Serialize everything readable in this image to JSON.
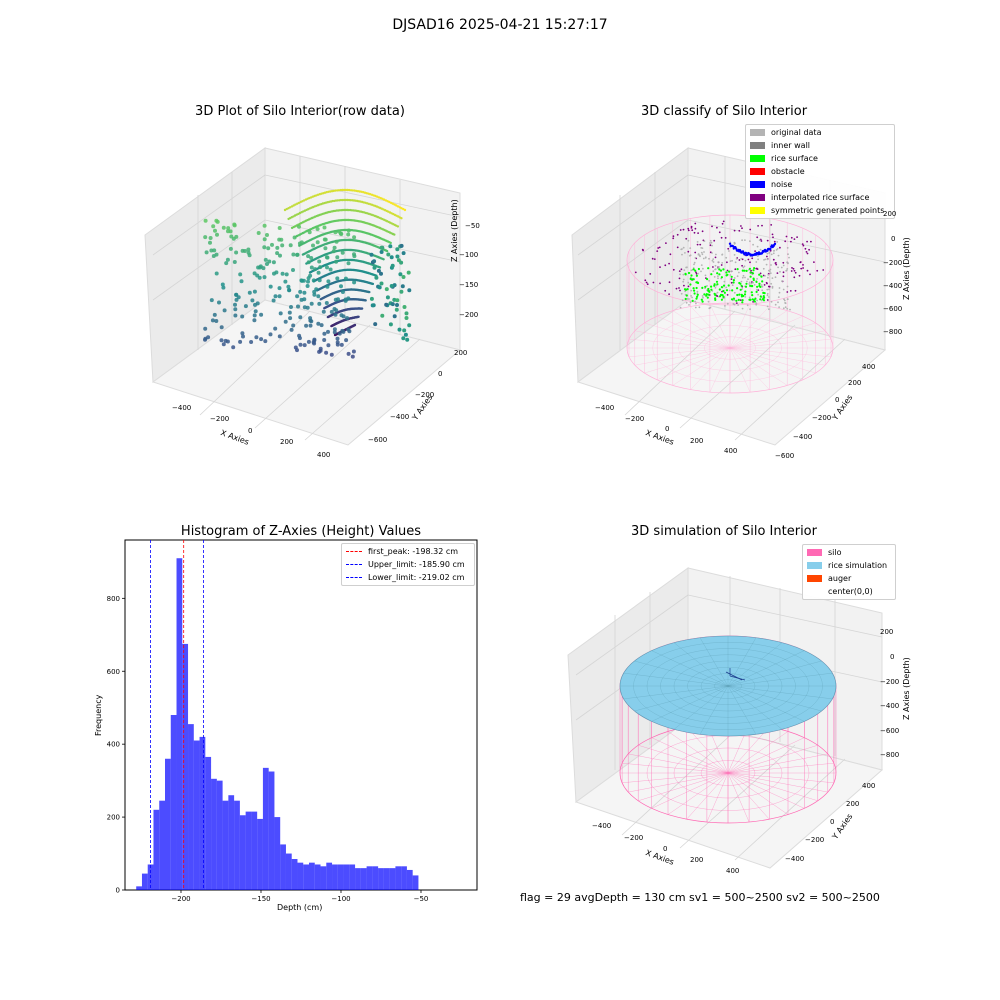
{
  "figure": {
    "suptitle": "DJSAD16 2025-04-21 15:27:17",
    "footer": "flag = 29  avgDepth = 130 cm  sv1 = 500~2500  sv2 = 500~2500"
  },
  "colors": {
    "silo": "#ff69b4",
    "rice_sim": "#87ceeb",
    "auger": "#ff4500",
    "hist": "#0000ff",
    "peak": "#ff0000",
    "limit": "#0000ff"
  },
  "chart_data": [
    {
      "type": "scatter",
      "title": "3D Plot of Silo Interior(row data)",
      "xlabel": "X Axies",
      "ylabel": "Y Axies",
      "zlabel": "Z Axies (Depth)",
      "xticks": [
        "−400",
        "−200",
        "0",
        "200",
        "400"
      ],
      "yticks": [
        "200",
        "0",
        "−200",
        "−400",
        "−600"
      ],
      "zticks": [
        "−50",
        "−100",
        "−150",
        "−200"
      ],
      "colormap": "viridis"
    },
    {
      "type": "scatter",
      "title": "3D classify of Silo Interior",
      "xlabel": "X Axies",
      "ylabel": "Y Axies",
      "zlabel": "Z Axies (Depth)",
      "xticks": [
        "−400",
        "−200",
        "0",
        "200",
        "400"
      ],
      "yticks": [
        "400",
        "200",
        "0",
        "−200",
        "−400",
        "−600"
      ],
      "zticks": [
        "200",
        "0",
        "−200",
        "−400",
        "−600",
        "−800"
      ],
      "legend": [
        {
          "label": "original data",
          "color": "#b4b4b4"
        },
        {
          "label": "inner wall",
          "color": "#808080"
        },
        {
          "label": "rice surface",
          "color": "#00ff00"
        },
        {
          "label": "obstacle",
          "color": "#ff0000"
        },
        {
          "label": "noise",
          "color": "#0000ff"
        },
        {
          "label": "interpolated rice surface",
          "color": "#800080"
        },
        {
          "label": "symmetric generated points",
          "color": "#ffff00"
        }
      ]
    },
    {
      "type": "bar",
      "title": "Histogram of Z-Axies (Height) Values",
      "xlabel": "Depth (cm)",
      "ylabel": "Frequency",
      "xlim": [
        -235,
        -15
      ],
      "ylim": [
        0,
        960
      ],
      "xticks": [
        {
          "value": -200,
          "label": "−200"
        },
        {
          "value": -150,
          "label": "−150"
        },
        {
          "value": -100,
          "label": "−100"
        },
        {
          "value": -50,
          "label": "−50"
        }
      ],
      "yticks": [
        0,
        200,
        400,
        600,
        800
      ],
      "bin_start": -228,
      "bin_width": 3.6,
      "values": [
        10,
        45,
        70,
        220,
        245,
        360,
        480,
        910,
        675,
        455,
        410,
        420,
        365,
        305,
        300,
        245,
        260,
        245,
        205,
        215,
        215,
        195,
        335,
        325,
        200,
        125,
        100,
        85,
        75,
        70,
        75,
        70,
        65,
        75,
        70,
        70,
        70,
        70,
        60,
        60,
        65,
        65,
        60,
        60,
        60,
        65,
        65,
        55,
        40
      ],
      "vlines": [
        {
          "label": "first_peak: -198.32 cm",
          "value": -198.32,
          "color": "#ff0000"
        },
        {
          "label": "Upper_limit: -185.90 cm",
          "value": -185.9,
          "color": "#0000ff"
        },
        {
          "label": "Lower_limit: -219.02 cm",
          "value": -219.02,
          "color": "#0000ff"
        }
      ]
    },
    {
      "type": "scatter",
      "title": "3D simulation of Silo Interior",
      "xlabel": "X Axies",
      "ylabel": "Y Axies",
      "zlabel": "Z Axies (Depth)",
      "xticks": [
        "−400",
        "−200",
        "0",
        "200",
        "400"
      ],
      "yticks": [
        "400",
        "200",
        "0",
        "−200",
        "−400"
      ],
      "zticks": [
        "200",
        "0",
        "−200",
        "−400",
        "−600",
        "−800"
      ],
      "legend": [
        {
          "label": "silo",
          "color": "#ff69b4"
        },
        {
          "label": "rice simulation",
          "color": "#87ceeb"
        },
        {
          "label": "auger",
          "color": "#ff4500"
        },
        {
          "label": "center(0,0)",
          "color": "#ffffff"
        }
      ]
    }
  ]
}
